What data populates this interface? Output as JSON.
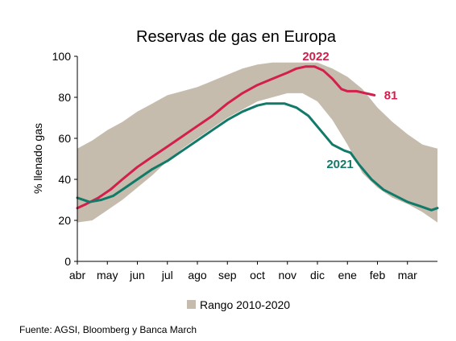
{
  "chart_data": {
    "type": "area",
    "title": "Reservas de gas en Europa",
    "ylabel": "% llenado gas",
    "xlabel": "",
    "ylim": [
      0,
      100
    ],
    "yticks": [
      0,
      20,
      40,
      60,
      80,
      100
    ],
    "xlim": [
      0,
      12
    ],
    "month_labels": [
      "abr",
      "may",
      "jun",
      "jul",
      "ago",
      "sep",
      "oct",
      "nov",
      "dic",
      "ene",
      "feb",
      "mar"
    ],
    "legend": {
      "placement": "bottom",
      "label": "Rango 2010-2020"
    },
    "source": "Fuente: AGSI, Bloomberg y Banca March",
    "band": {
      "name": "Rango 2010-2020",
      "color": "#c5bcae",
      "x": [
        0,
        0.5,
        1,
        1.5,
        2,
        2.5,
        3,
        3.5,
        4,
        4.5,
        5,
        5.5,
        6,
        6.5,
        7,
        7.5,
        8,
        8.5,
        9,
        9.5,
        10,
        10.5,
        11,
        11.5,
        12
      ],
      "lower": [
        19,
        20,
        25,
        30,
        36,
        42,
        49,
        55,
        60,
        65,
        70,
        74,
        78,
        80,
        82,
        82,
        78,
        69,
        57,
        43,
        36,
        31,
        28,
        24,
        19
      ],
      "upper": [
        55,
        59,
        64,
        68,
        73,
        77,
        81,
        83,
        85,
        88,
        91,
        94,
        96,
        97,
        97,
        97,
        97,
        94,
        90,
        84,
        75,
        68,
        62,
        57,
        55
      ]
    },
    "series": [
      {
        "name": "2022",
        "color": "#d21f4c",
        "x": [
          0,
          0.3,
          0.7,
          1.1,
          1.5,
          2,
          2.5,
          3,
          3.5,
          4,
          4.5,
          5,
          5.5,
          6,
          6.5,
          7,
          7.3,
          7.6,
          7.9,
          8.2,
          8.5,
          8.8,
          9.0,
          9.3,
          9.6,
          9.9
        ],
        "values": [
          26,
          28,
          31,
          35,
          40,
          46,
          51,
          56,
          61,
          66,
          71,
          77,
          82,
          86,
          89,
          92,
          94,
          95,
          95,
          93,
          89,
          84,
          83,
          83,
          82,
          81
        ],
        "end_label": "81"
      },
      {
        "name": "2021",
        "color": "#127a69",
        "x": [
          0,
          0.4,
          0.8,
          1.2,
          1.6,
          2,
          2.5,
          3,
          3.5,
          4,
          4.5,
          5,
          5.5,
          6,
          6.3,
          6.6,
          6.9,
          7.3,
          7.7,
          8.1,
          8.5,
          8.9,
          9.1,
          9.4,
          9.8,
          10.2,
          10.6,
          11,
          11.4,
          11.8,
          12
        ],
        "values": [
          31,
          29,
          30,
          32,
          36,
          40,
          45,
          49,
          54,
          59,
          64,
          69,
          73,
          76,
          77,
          77,
          77,
          75,
          71,
          64,
          57,
          54,
          53,
          47,
          40,
          35,
          32,
          29,
          27,
          25,
          26
        ]
      }
    ]
  }
}
